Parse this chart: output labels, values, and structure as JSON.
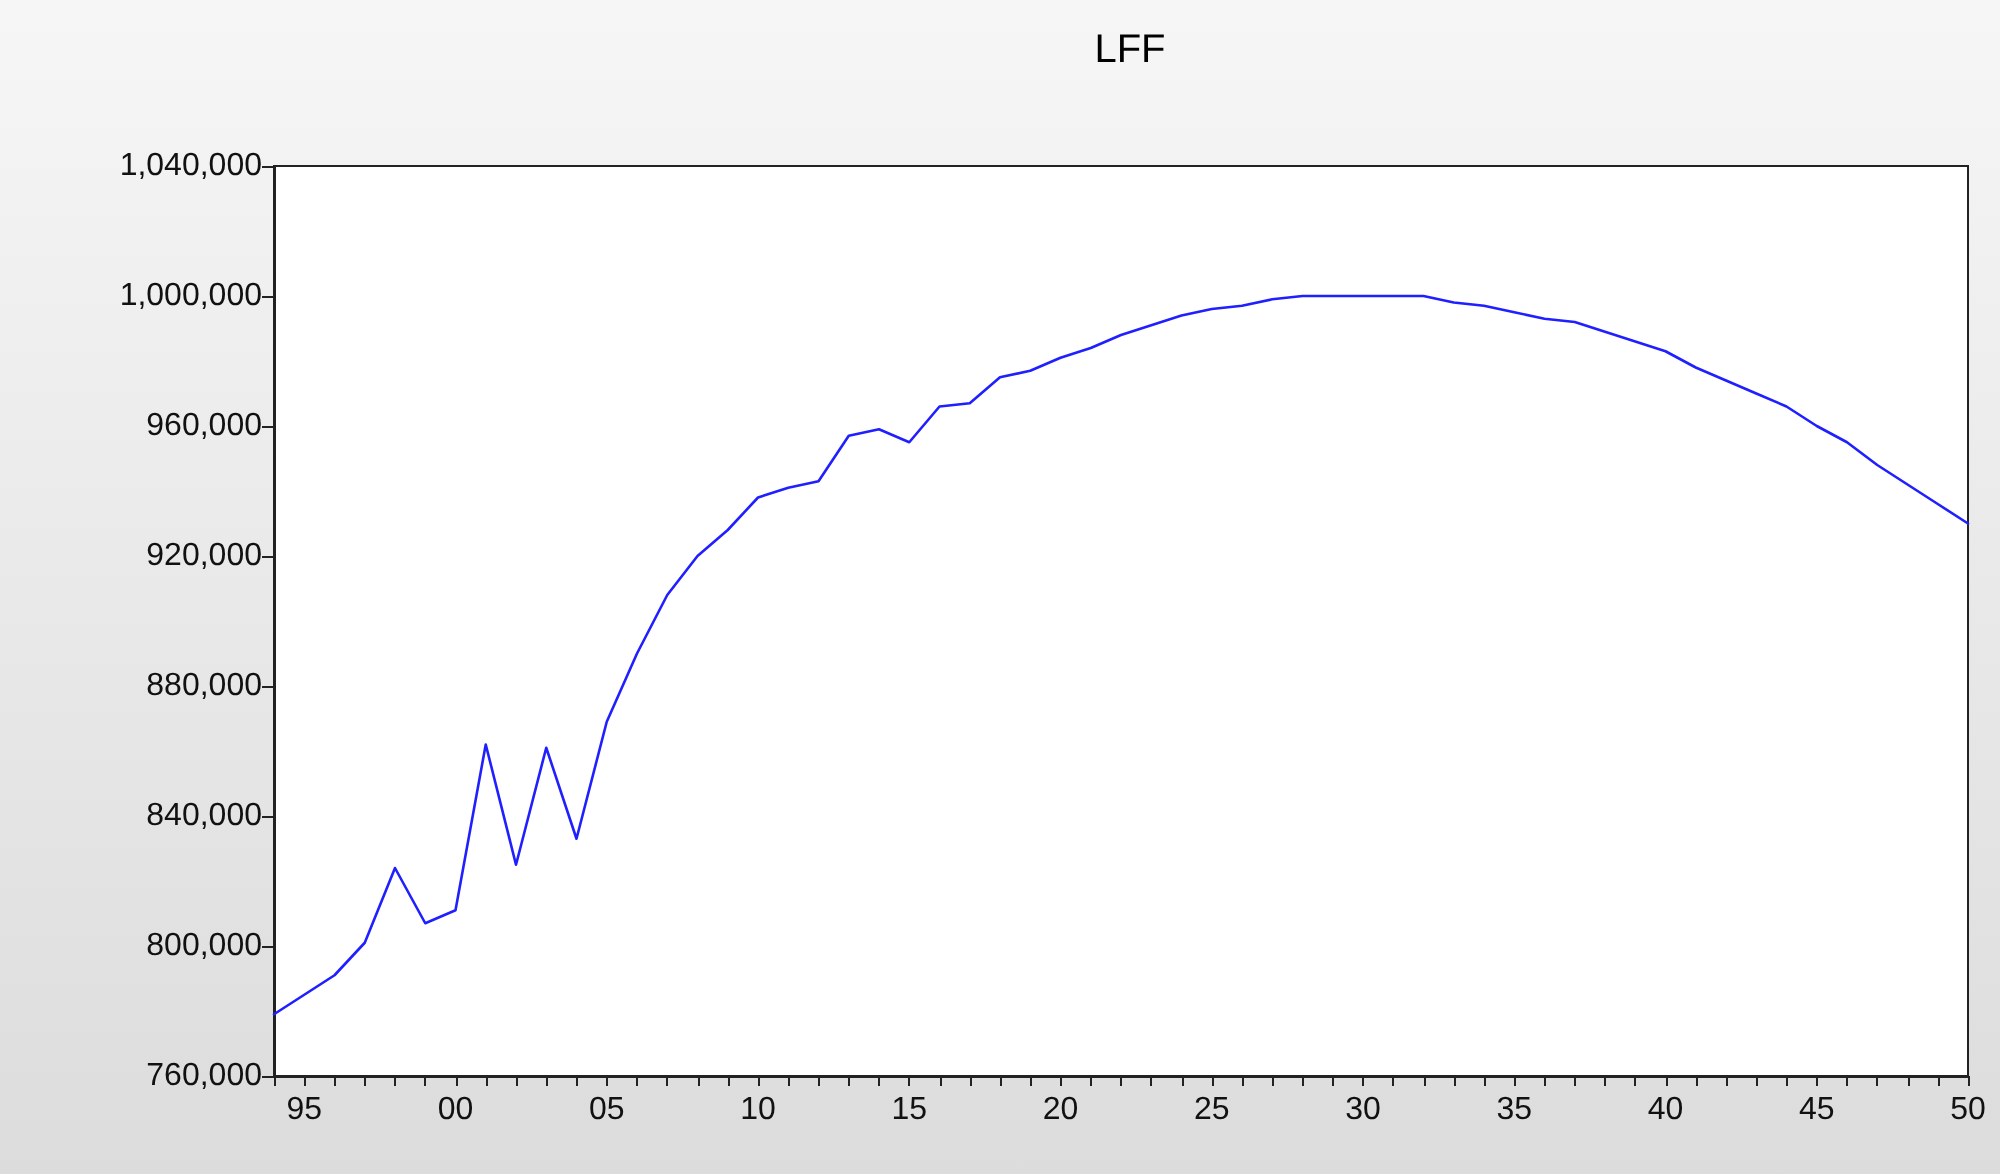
{
  "chart_data": {
    "type": "line",
    "title": "LFF",
    "x": [
      1994,
      1995,
      1996,
      1997,
      1998,
      1999,
      2000,
      2001,
      2002,
      2003,
      2004,
      2005,
      2006,
      2007,
      2008,
      2009,
      2010,
      2011,
      2012,
      2013,
      2014,
      2015,
      2016,
      2017,
      2018,
      2019,
      2020,
      2021,
      2022,
      2023,
      2024,
      2025,
      2026,
      2027,
      2028,
      2029,
      2030,
      2031,
      2032,
      2033,
      2034,
      2035,
      2036,
      2037,
      2038,
      2039,
      2040,
      2041,
      2042,
      2043,
      2044,
      2045,
      2046,
      2047,
      2048,
      2049,
      2050
    ],
    "series": [
      {
        "color": "#1f1fff",
        "values": [
          779000,
          785000,
          791000,
          801000,
          824000,
          807000,
          811000,
          862000,
          825000,
          861000,
          833000,
          869000,
          890000,
          908000,
          920000,
          928000,
          938000,
          941000,
          943000,
          957000,
          959000,
          955000,
          966000,
          967000,
          975000,
          977000,
          981000,
          984000,
          988000,
          991000,
          994000,
          996000,
          997000,
          999000,
          1000000,
          1000000,
          1000000,
          1000000,
          1000000,
          998000,
          997000,
          995000,
          993000,
          992000,
          989000,
          986000,
          983000,
          978000,
          974000,
          970000,
          966000,
          960000,
          955000,
          948000,
          942000,
          936000,
          930000
        ]
      }
    ],
    "xlim": [
      1994,
      2050
    ],
    "xticks": [
      {
        "value": 1994,
        "label": null
      },
      {
        "value": 1995,
        "label": "95"
      },
      {
        "value": 1996,
        "label": null
      },
      {
        "value": 1997,
        "label": null
      },
      {
        "value": 1998,
        "label": null
      },
      {
        "value": 1999,
        "label": null
      },
      {
        "value": 2000,
        "label": "00"
      },
      {
        "value": 2001,
        "label": null
      },
      {
        "value": 2002,
        "label": null
      },
      {
        "value": 2003,
        "label": null
      },
      {
        "value": 2004,
        "label": null
      },
      {
        "value": 2005,
        "label": "05"
      },
      {
        "value": 2006,
        "label": null
      },
      {
        "value": 2007,
        "label": null
      },
      {
        "value": 2008,
        "label": null
      },
      {
        "value": 2009,
        "label": null
      },
      {
        "value": 2010,
        "label": "10"
      },
      {
        "value": 2011,
        "label": null
      },
      {
        "value": 2012,
        "label": null
      },
      {
        "value": 2013,
        "label": null
      },
      {
        "value": 2014,
        "label": null
      },
      {
        "value": 2015,
        "label": "15"
      },
      {
        "value": 2016,
        "label": null
      },
      {
        "value": 2017,
        "label": null
      },
      {
        "value": 2018,
        "label": null
      },
      {
        "value": 2019,
        "label": null
      },
      {
        "value": 2020,
        "label": "20"
      },
      {
        "value": 2021,
        "label": null
      },
      {
        "value": 2022,
        "label": null
      },
      {
        "value": 2023,
        "label": null
      },
      {
        "value": 2024,
        "label": null
      },
      {
        "value": 2025,
        "label": "25"
      },
      {
        "value": 2026,
        "label": null
      },
      {
        "value": 2027,
        "label": null
      },
      {
        "value": 2028,
        "label": null
      },
      {
        "value": 2029,
        "label": null
      },
      {
        "value": 2030,
        "label": "30"
      },
      {
        "value": 2031,
        "label": null
      },
      {
        "value": 2032,
        "label": null
      },
      {
        "value": 2033,
        "label": null
      },
      {
        "value": 2034,
        "label": null
      },
      {
        "value": 2035,
        "label": "35"
      },
      {
        "value": 2036,
        "label": null
      },
      {
        "value": 2037,
        "label": null
      },
      {
        "value": 2038,
        "label": null
      },
      {
        "value": 2039,
        "label": null
      },
      {
        "value": 2040,
        "label": "40"
      },
      {
        "value": 2041,
        "label": null
      },
      {
        "value": 2042,
        "label": null
      },
      {
        "value": 2043,
        "label": null
      },
      {
        "value": 2044,
        "label": null
      },
      {
        "value": 2045,
        "label": "45"
      },
      {
        "value": 2046,
        "label": null
      },
      {
        "value": 2047,
        "label": null
      },
      {
        "value": 2048,
        "label": null
      },
      {
        "value": 2049,
        "label": null
      },
      {
        "value": 2050,
        "label": "50"
      }
    ],
    "ylim": [
      760000,
      1040000
    ],
    "yticks": [
      {
        "value": 760000,
        "label": "760,000"
      },
      {
        "value": 800000,
        "label": "800,000"
      },
      {
        "value": 840000,
        "label": "840,000"
      },
      {
        "value": 880000,
        "label": "880,000"
      },
      {
        "value": 920000,
        "label": "920,000"
      },
      {
        "value": 960000,
        "label": "960,000"
      },
      {
        "value": 1000000,
        "label": "1,000,000"
      },
      {
        "value": 1040000,
        "label": "1,040,000"
      }
    ],
    "grid": false,
    "marker": "none",
    "line_style": "solid"
  }
}
